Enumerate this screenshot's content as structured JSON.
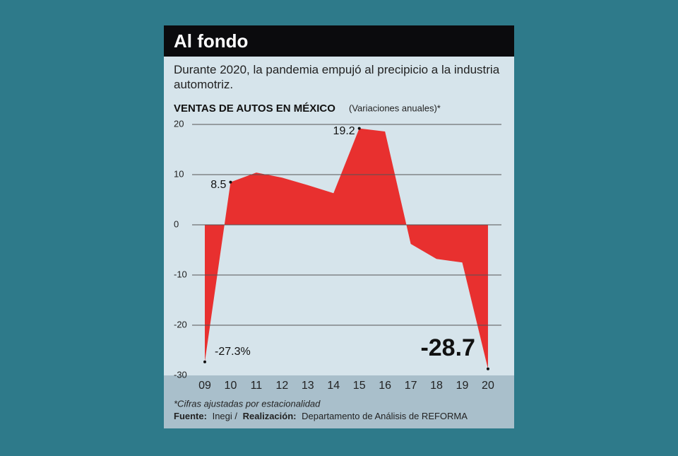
{
  "chart_data": {
    "type": "area",
    "title": "Al fondo",
    "subtitle": "Durante 2020, la pandemia empujó al precipicio a la industria automotriz.",
    "chart_title": "VENTAS DE AUTOS EN MÉXICO",
    "chart_subtitle": "(Variaciones anuales)*",
    "categories": [
      "09",
      "10",
      "11",
      "12",
      "13",
      "14",
      "15",
      "16",
      "17",
      "18",
      "19",
      "20"
    ],
    "values": [
      -27.3,
      8.5,
      10.4,
      9.4,
      7.9,
      6.3,
      19.2,
      18.6,
      -3.8,
      -6.8,
      -7.5,
      -28.7
    ],
    "value_labels": [
      "-27.3%",
      "8.5",
      null,
      null,
      null,
      null,
      "19.2",
      null,
      null,
      null,
      null,
      "-28.7"
    ],
    "color": "#e8302f",
    "ylim": [
      -30,
      20
    ],
    "yticks": [
      20,
      10,
      0,
      -10,
      -20,
      -30
    ],
    "grid": true,
    "footnote": "*Cifras ajustadas por estacionalidad",
    "source_label": "Fuente:",
    "source": "Inegi /",
    "credit_label": "Realización:",
    "credit": "Departamento de Análisis de REFORMA"
  }
}
